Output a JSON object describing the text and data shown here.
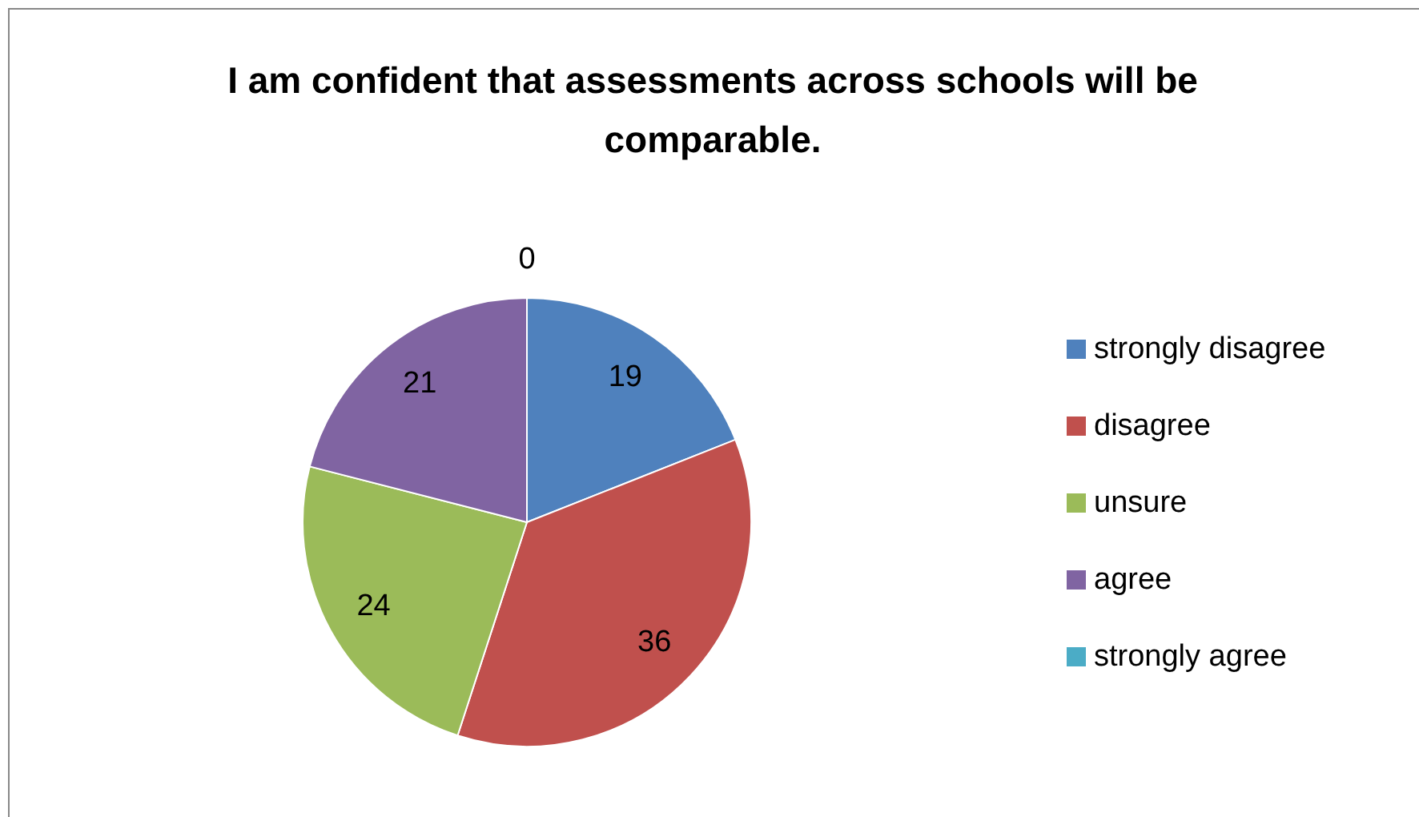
{
  "chart_data": {
    "type": "pie",
    "title": "I am confident that assessments across schools will be comparable.",
    "categories": [
      "strongly disagree",
      "disagree",
      "unsure",
      "agree",
      "strongly agree"
    ],
    "values": [
      19,
      36,
      24,
      21,
      0
    ],
    "colors": [
      "#4f81bd",
      "#c0504d",
      "#9bbb59",
      "#8064a2",
      "#4bacc6"
    ],
    "value_labels": [
      "19",
      "36",
      "24",
      "21",
      "0"
    ],
    "legend": "right"
  }
}
